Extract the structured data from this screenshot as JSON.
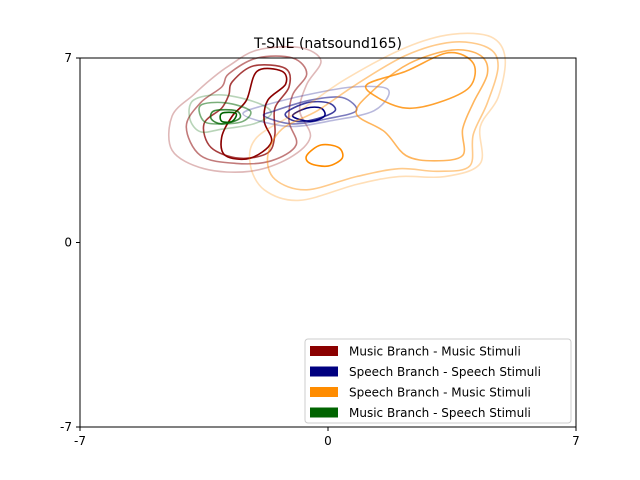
{
  "chart_data": {
    "type": "kde-contour",
    "title": "T-SNE (natsound165)",
    "xlabel": "",
    "ylabel": "",
    "xlim": [
      -7,
      7
    ],
    "ylim": [
      -7,
      7
    ],
    "xticks": [
      -7,
      0,
      7
    ],
    "yticks": [
      -7,
      0,
      7
    ],
    "xtick_labels": [
      "-7",
      "0",
      "7"
    ],
    "ytick_labels": [
      "-7",
      "0",
      "7"
    ],
    "grid": false,
    "legend_position": "lower-right",
    "series": [
      {
        "name": "Music Branch - Music Stimuli",
        "color": "#8b0000",
        "levels": [
          [
            [
              -2.8,
              6.7
            ],
            [
              -2.0,
              7.3
            ],
            [
              -0.8,
              7.4
            ],
            [
              -0.2,
              6.9
            ],
            [
              -0.6,
              6.0
            ],
            [
              -0.8,
              5.0
            ],
            [
              -0.5,
              4.0
            ],
            [
              -1.1,
              3.2
            ],
            [
              -2.2,
              2.7
            ],
            [
              -3.5,
              2.8
            ],
            [
              -4.4,
              3.5
            ],
            [
              -4.4,
              4.8
            ],
            [
              -3.8,
              5.6
            ],
            [
              -3.3,
              6.2
            ]
          ],
          [
            [
              -2.8,
              6.4
            ],
            [
              -2.0,
              7.0
            ],
            [
              -1.0,
              7.0
            ],
            [
              -0.6,
              6.4
            ],
            [
              -1.0,
              5.6
            ],
            [
              -1.1,
              4.6
            ],
            [
              -0.9,
              3.7
            ],
            [
              -1.6,
              3.1
            ],
            [
              -2.6,
              3.0
            ],
            [
              -3.6,
              3.3
            ],
            [
              -4.0,
              4.4
            ],
            [
              -3.6,
              5.3
            ],
            [
              -3.0,
              5.9
            ]
          ],
          [
            [
              -2.7,
              6.1
            ],
            [
              -2.1,
              6.7
            ],
            [
              -1.2,
              6.6
            ],
            [
              -1.1,
              5.9
            ],
            [
              -1.5,
              5.1
            ],
            [
              -1.5,
              4.1
            ],
            [
              -1.7,
              3.4
            ],
            [
              -2.5,
              3.2
            ],
            [
              -3.3,
              3.6
            ],
            [
              -3.5,
              4.5
            ],
            [
              -3.0,
              5.1
            ],
            [
              -2.8,
              5.6
            ]
          ],
          [
            [
              -2.0,
              6.5
            ],
            [
              -1.3,
              6.5
            ],
            [
              -1.2,
              6.0
            ],
            [
              -1.7,
              5.4
            ],
            [
              -1.8,
              4.6
            ],
            [
              -1.6,
              3.8
            ],
            [
              -2.2,
              3.2
            ],
            [
              -2.9,
              3.3
            ],
            [
              -3.0,
              4.0
            ],
            [
              -2.7,
              4.8
            ],
            [
              -2.3,
              5.4
            ]
          ]
        ]
      },
      {
        "name": "Speech Branch - Speech Stimuli",
        "color": "#000080",
        "levels": [
          [
            [
              -1.8,
              5.2
            ],
            [
              -0.6,
              5.6
            ],
            [
              0.7,
              5.9
            ],
            [
              1.7,
              5.8
            ],
            [
              1.3,
              5.0
            ],
            [
              0.0,
              4.6
            ],
            [
              -1.0,
              4.4
            ],
            [
              -1.9,
              4.6
            ],
            [
              -2.4,
              4.9
            ]
          ],
          [
            [
              -1.5,
              5.0
            ],
            [
              -0.5,
              5.4
            ],
            [
              0.4,
              5.5
            ],
            [
              0.8,
              5.0
            ],
            [
              0.0,
              4.7
            ],
            [
              -1.0,
              4.5
            ],
            [
              -1.8,
              4.8
            ]
          ],
          [
            [
              -1.2,
              4.9
            ],
            [
              -0.6,
              5.3
            ],
            [
              0.0,
              5.3
            ],
            [
              0.2,
              5.0
            ],
            [
              -0.3,
              4.7
            ],
            [
              -0.9,
              4.6
            ]
          ],
          [
            [
              -1.0,
              4.8
            ],
            [
              -0.6,
              5.1
            ],
            [
              -0.2,
              5.1
            ],
            [
              -0.1,
              4.8
            ],
            [
              -0.5,
              4.6
            ]
          ]
        ]
      },
      {
        "name": "Speech Branch - Music Stimuli",
        "color": "#ff8c00",
        "levels": [
          [
            [
              0.5,
              6.2
            ],
            [
              2.2,
              7.4
            ],
            [
              3.5,
              7.9
            ],
            [
              4.6,
              7.8
            ],
            [
              5.0,
              7.0
            ],
            [
              4.8,
              5.5
            ],
            [
              4.3,
              4.4
            ],
            [
              4.3,
              3.0
            ],
            [
              3.3,
              2.5
            ],
            [
              2.0,
              2.5
            ],
            [
              0.8,
              2.2
            ],
            [
              -0.8,
              1.6
            ],
            [
              -1.8,
              2.0
            ],
            [
              -2.2,
              3.0
            ],
            [
              -2.0,
              4.0
            ],
            [
              -0.8,
              5.0
            ]
          ],
          [
            [
              0.8,
              6.0
            ],
            [
              2.2,
              7.1
            ],
            [
              3.5,
              7.6
            ],
            [
              4.5,
              7.4
            ],
            [
              4.8,
              6.7
            ],
            [
              4.5,
              5.3
            ],
            [
              4.1,
              4.1
            ],
            [
              4.0,
              2.9
            ],
            [
              3.1,
              2.7
            ],
            [
              2.0,
              2.8
            ],
            [
              0.8,
              2.5
            ],
            [
              -0.6,
              2.0
            ],
            [
              -1.5,
              2.4
            ],
            [
              -1.7,
              3.3
            ],
            [
              -1.3,
              4.3
            ],
            [
              -0.3,
              5.0
            ]
          ],
          [
            [
              1.3,
              5.8
            ],
            [
              2.3,
              6.8
            ],
            [
              3.5,
              7.3
            ],
            [
              4.3,
              7.1
            ],
            [
              4.5,
              6.4
            ],
            [
              4.1,
              5.3
            ],
            [
              3.8,
              4.3
            ],
            [
              3.8,
              3.3
            ],
            [
              3.0,
              3.1
            ],
            [
              2.2,
              3.3
            ],
            [
              1.6,
              4.2
            ],
            [
              0.8,
              4.9
            ]
          ],
          [
            [
              1.1,
              6.0
            ],
            [
              2.2,
              6.5
            ],
            [
              3.4,
              7.2
            ],
            [
              4.1,
              6.8
            ],
            [
              4.0,
              5.9
            ],
            [
              3.1,
              5.3
            ],
            [
              2.2,
              5.1
            ],
            [
              1.4,
              5.5
            ]
          ],
          [
            [
              -0.6,
              3.3
            ],
            [
              -0.2,
              3.7
            ],
            [
              0.3,
              3.6
            ],
            [
              0.4,
              3.2
            ],
            [
              0.0,
              2.9
            ],
            [
              -0.5,
              3.0
            ]
          ]
        ]
      },
      {
        "name": "Music Branch - Speech Stimuli",
        "color": "#006400",
        "levels": [
          [
            [
              -3.8,
              5.4
            ],
            [
              -3.0,
              5.6
            ],
            [
              -2.0,
              5.3
            ],
            [
              -1.6,
              4.9
            ],
            [
              -2.1,
              4.5
            ],
            [
              -3.0,
              4.3
            ],
            [
              -3.6,
              4.2
            ],
            [
              -3.9,
              4.7
            ]
          ],
          [
            [
              -3.6,
              5.2
            ],
            [
              -2.9,
              5.3
            ],
            [
              -2.2,
              5.0
            ],
            [
              -2.4,
              4.6
            ],
            [
              -3.0,
              4.5
            ],
            [
              -3.5,
              4.6
            ]
          ],
          [
            [
              -3.2,
              5.0
            ],
            [
              -2.6,
              5.0
            ],
            [
              -2.5,
              4.7
            ],
            [
              -3.0,
              4.5
            ],
            [
              -3.3,
              4.7
            ]
          ],
          [
            [
              -3.0,
              4.9
            ],
            [
              -2.6,
              4.9
            ],
            [
              -2.7,
              4.6
            ],
            [
              -3.0,
              4.6
            ]
          ]
        ]
      }
    ]
  }
}
